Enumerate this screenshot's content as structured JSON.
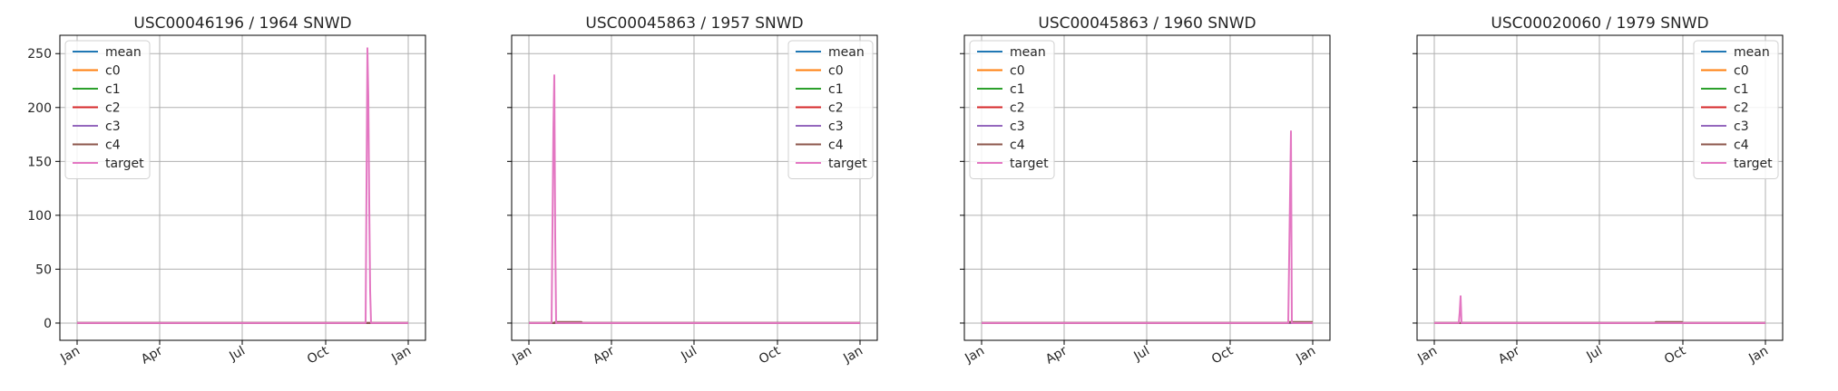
{
  "figure": {
    "background": "#ffffff",
    "grid_color": "#b0b0b0",
    "axis_color": "#000000"
  },
  "series_styles": [
    {
      "name": "mean",
      "color": "#1f77b4"
    },
    {
      "name": "c0",
      "color": "#ff7f0e"
    },
    {
      "name": "c1",
      "color": "#2ca02c"
    },
    {
      "name": "c2",
      "color": "#d62728"
    },
    {
      "name": "c3",
      "color": "#9467bd"
    },
    {
      "name": "c4",
      "color": "#8c564b"
    },
    {
      "name": "target",
      "color": "#e377c2"
    }
  ],
  "chart_data": [
    {
      "type": "line",
      "title": "USC00046196 / 1964    SNWD",
      "xlabel": "",
      "ylabel": "",
      "x_ticks": [
        "Jan",
        "Apr",
        "Jul",
        "Oct",
        "Jan"
      ],
      "x_tick_days": [
        0,
        91,
        182,
        274,
        365
      ],
      "xlim_days": [
        -19,
        384
      ],
      "ylim": [
        -16,
        267
      ],
      "y_ticks": [
        0,
        50,
        100,
        150,
        200,
        250
      ],
      "show_y_ticklabels": true,
      "grid": true,
      "legend_position": "upper-left",
      "series": [
        {
          "name": "mean",
          "x": [
            0,
            365
          ],
          "y": [
            0,
            0
          ]
        },
        {
          "name": "c0",
          "x": [
            0,
            365
          ],
          "y": [
            0,
            0
          ]
        },
        {
          "name": "c1",
          "x": [
            0,
            365
          ],
          "y": [
            0,
            0
          ]
        },
        {
          "name": "c2",
          "x": [
            0,
            365
          ],
          "y": [
            0,
            0
          ]
        },
        {
          "name": "c3",
          "x": [
            0,
            365
          ],
          "y": [
            0,
            0
          ]
        },
        {
          "name": "c4",
          "x": [
            0,
            365
          ],
          "y": [
            0,
            0
          ]
        },
        {
          "name": "target",
          "x": [
            0,
            318,
            320,
            321,
            322,
            323,
            324,
            325,
            365
          ],
          "y": [
            0,
            0,
            255,
            210,
            110,
            30,
            0,
            0,
            0
          ]
        }
      ]
    },
    {
      "type": "line",
      "title": "USC00045863 / 1957    SNWD",
      "xlabel": "",
      "ylabel": "",
      "x_ticks": [
        "Jan",
        "Apr",
        "Jul",
        "Oct",
        "Jan"
      ],
      "x_tick_days": [
        0,
        91,
        182,
        274,
        365
      ],
      "xlim_days": [
        -19,
        384
      ],
      "ylim": [
        -16,
        267
      ],
      "y_ticks": [
        0,
        50,
        100,
        150,
        200,
        250
      ],
      "show_y_ticklabels": false,
      "grid": true,
      "legend_position": "upper-right",
      "series": [
        {
          "name": "mean",
          "x": [
            0,
            365
          ],
          "y": [
            0,
            0
          ]
        },
        {
          "name": "c0",
          "x": [
            0,
            365
          ],
          "y": [
            0,
            0
          ]
        },
        {
          "name": "c1",
          "x": [
            0,
            365
          ],
          "y": [
            0,
            0
          ]
        },
        {
          "name": "c2",
          "x": [
            0,
            365
          ],
          "y": [
            0,
            0
          ]
        },
        {
          "name": "c3",
          "x": [
            0,
            365
          ],
          "y": [
            0,
            0
          ]
        },
        {
          "name": "c4",
          "x": [
            0,
            28,
            29,
            58,
            59,
            365
          ],
          "y": [
            0,
            0,
            1,
            1,
            0,
            0
          ]
        },
        {
          "name": "target",
          "x": [
            0,
            25,
            27,
            28,
            29,
            30,
            365
          ],
          "y": [
            0,
            0,
            180,
            230,
            80,
            0,
            0
          ]
        }
      ]
    },
    {
      "type": "line",
      "title": "USC00045863 / 1960    SNWD",
      "xlabel": "",
      "ylabel": "",
      "x_ticks": [
        "Jan",
        "Apr",
        "Jul",
        "Oct",
        "Jan"
      ],
      "x_tick_days": [
        0,
        91,
        182,
        274,
        365
      ],
      "xlim_days": [
        -19,
        384
      ],
      "ylim": [
        -16,
        267
      ],
      "y_ticks": [
        0,
        50,
        100,
        150,
        200,
        250
      ],
      "show_y_ticklabels": false,
      "grid": true,
      "legend_position": "upper-left",
      "series": [
        {
          "name": "mean",
          "x": [
            0,
            365
          ],
          "y": [
            0,
            0
          ]
        },
        {
          "name": "c0",
          "x": [
            0,
            365
          ],
          "y": [
            0,
            0
          ]
        },
        {
          "name": "c1",
          "x": [
            0,
            365
          ],
          "y": [
            0,
            0
          ]
        },
        {
          "name": "c2",
          "x": [
            0,
            365
          ],
          "y": [
            0,
            0
          ]
        },
        {
          "name": "c3",
          "x": [
            0,
            365
          ],
          "y": [
            0,
            0
          ]
        },
        {
          "name": "c4",
          "x": [
            0,
            338,
            339,
            365
          ],
          "y": [
            0,
            0,
            1,
            1
          ]
        },
        {
          "name": "target",
          "x": [
            0,
            338,
            341,
            342,
            365
          ],
          "y": [
            0,
            0,
            178,
            0,
            0
          ]
        }
      ]
    },
    {
      "type": "line",
      "title": "USC00020060 / 1979    SNWD",
      "xlabel": "",
      "ylabel": "",
      "x_ticks": [
        "Jan",
        "Apr",
        "Jul",
        "Oct",
        "Jan"
      ],
      "x_tick_days": [
        0,
        91,
        182,
        274,
        365
      ],
      "xlim_days": [
        -19,
        384
      ],
      "ylim": [
        -16,
        267
      ],
      "y_ticks": [
        0,
        50,
        100,
        150,
        200,
        250
      ],
      "show_y_ticklabels": false,
      "grid": true,
      "legend_position": "upper-right",
      "series": [
        {
          "name": "mean",
          "x": [
            0,
            365
          ],
          "y": [
            0,
            0
          ]
        },
        {
          "name": "c0",
          "x": [
            0,
            365
          ],
          "y": [
            0,
            0
          ]
        },
        {
          "name": "c1",
          "x": [
            0,
            365
          ],
          "y": [
            0,
            0
          ]
        },
        {
          "name": "c2",
          "x": [
            0,
            365
          ],
          "y": [
            0,
            0
          ]
        },
        {
          "name": "c3",
          "x": [
            0,
            365
          ],
          "y": [
            0,
            0
          ]
        },
        {
          "name": "c4",
          "x": [
            0,
            243,
            244,
            273,
            274,
            365
          ],
          "y": [
            0,
            0,
            1,
            1,
            0,
            0
          ]
        },
        {
          "name": "target",
          "x": [
            0,
            27,
            28,
            29,
            30,
            365
          ],
          "y": [
            0,
            0,
            10,
            25,
            0,
            0
          ]
        }
      ]
    }
  ]
}
